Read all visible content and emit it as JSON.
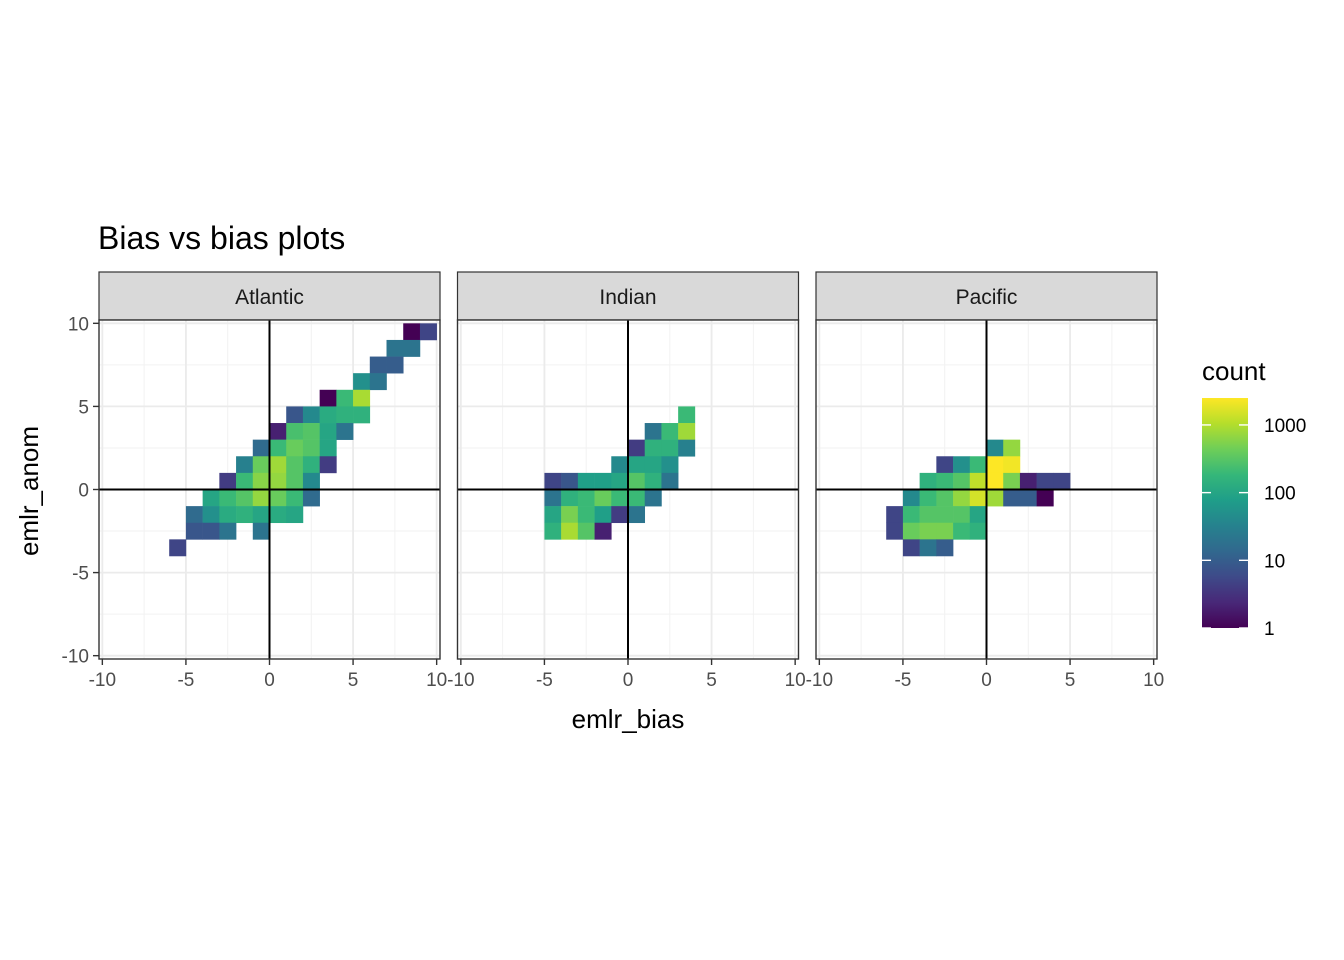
{
  "chart_data": {
    "type": "heatmap",
    "title": "Bias vs bias plots",
    "xlabel": "emlr_bias",
    "ylabel": "emlr_anom",
    "xlim": [
      -10,
      10
    ],
    "ylim": [
      -10,
      10
    ],
    "x_ticks": [
      -10,
      -5,
      0,
      5,
      10
    ],
    "y_ticks": [
      -10,
      -5,
      0,
      5,
      10
    ],
    "x_tick_labels": [
      "-10",
      "-5",
      "0",
      "5",
      "10"
    ],
    "y_tick_labels": [
      "-10",
      "-5",
      "0",
      "5",
      "10"
    ],
    "bin_width": 1,
    "grid": true,
    "reference_lines": {
      "x": 0,
      "y": 0
    },
    "legend": {
      "title": "count",
      "position": "right",
      "scale": "log10",
      "breaks": [
        1,
        10,
        100,
        1000
      ],
      "break_labels": [
        "1",
        "10",
        "100",
        "1000"
      ],
      "max": 2500,
      "colors": [
        "#440154",
        "#482878",
        "#3e4a89",
        "#31688e",
        "#26828e",
        "#1f9e89",
        "#35b779",
        "#6ece58",
        "#b5de2b",
        "#fde725"
      ]
    },
    "facets": [
      {
        "name": "Atlantic",
        "cells": [
          {
            "x": 8.5,
            "y": 9.5,
            "count": 1
          },
          {
            "x": 9.5,
            "y": 9.5,
            "count": 5
          },
          {
            "x": 7.5,
            "y": 8.5,
            "count": 20
          },
          {
            "x": 8.5,
            "y": 8.5,
            "count": 20
          },
          {
            "x": 6.5,
            "y": 7.5,
            "count": 10
          },
          {
            "x": 7.5,
            "y": 7.5,
            "count": 10
          },
          {
            "x": 5.5,
            "y": 6.5,
            "count": 50
          },
          {
            "x": 6.5,
            "y": 6.5,
            "count": 20
          },
          {
            "x": 3.5,
            "y": 5.5,
            "count": 1
          },
          {
            "x": 4.5,
            "y": 5.5,
            "count": 200
          },
          {
            "x": 5.5,
            "y": 5.5,
            "count": 900
          },
          {
            "x": 1.5,
            "y": 4.5,
            "count": 8
          },
          {
            "x": 2.5,
            "y": 4.5,
            "count": 40
          },
          {
            "x": 3.5,
            "y": 4.5,
            "count": 120
          },
          {
            "x": 4.5,
            "y": 4.5,
            "count": 150
          },
          {
            "x": 5.5,
            "y": 4.5,
            "count": 150
          },
          {
            "x": 0.5,
            "y": 3.5,
            "count": 2
          },
          {
            "x": 1.5,
            "y": 3.5,
            "count": 250
          },
          {
            "x": 2.5,
            "y": 3.5,
            "count": 300
          },
          {
            "x": 3.5,
            "y": 3.5,
            "count": 100
          },
          {
            "x": 4.5,
            "y": 3.5,
            "count": 20
          },
          {
            "x": -0.5,
            "y": 2.5,
            "count": 15
          },
          {
            "x": 0.5,
            "y": 2.5,
            "count": 200
          },
          {
            "x": 1.5,
            "y": 2.5,
            "count": 400
          },
          {
            "x": 2.5,
            "y": 2.5,
            "count": 300
          },
          {
            "x": 3.5,
            "y": 2.5,
            "count": 100
          },
          {
            "x": -1.5,
            "y": 1.5,
            "count": 30
          },
          {
            "x": -0.5,
            "y": 1.5,
            "count": 400
          },
          {
            "x": 0.5,
            "y": 1.5,
            "count": 800
          },
          {
            "x": 1.5,
            "y": 1.5,
            "count": 300
          },
          {
            "x": 2.5,
            "y": 1.5,
            "count": 150
          },
          {
            "x": 3.5,
            "y": 1.5,
            "count": 4
          },
          {
            "x": -2.5,
            "y": 0.5,
            "count": 4
          },
          {
            "x": -1.5,
            "y": 0.5,
            "count": 200
          },
          {
            "x": -0.5,
            "y": 0.5,
            "count": 600
          },
          {
            "x": 0.5,
            "y": 0.5,
            "count": 700
          },
          {
            "x": 1.5,
            "y": 0.5,
            "count": 300
          },
          {
            "x": 2.5,
            "y": 0.5,
            "count": 40
          },
          {
            "x": -3.5,
            "y": -0.5,
            "count": 100
          },
          {
            "x": -2.5,
            "y": -0.5,
            "count": 200
          },
          {
            "x": -1.5,
            "y": -0.5,
            "count": 300
          },
          {
            "x": -0.5,
            "y": -0.5,
            "count": 700
          },
          {
            "x": 0.5,
            "y": -0.5,
            "count": 400
          },
          {
            "x": 1.5,
            "y": -0.5,
            "count": 200
          },
          {
            "x": 2.5,
            "y": -0.5,
            "count": 15
          },
          {
            "x": -4.5,
            "y": -1.5,
            "count": 15
          },
          {
            "x": -3.5,
            "y": -1.5,
            "count": 50
          },
          {
            "x": -2.5,
            "y": -1.5,
            "count": 120
          },
          {
            "x": -1.5,
            "y": -1.5,
            "count": 150
          },
          {
            "x": -0.5,
            "y": -1.5,
            "count": 100
          },
          {
            "x": 0.5,
            "y": -1.5,
            "count": 120
          },
          {
            "x": 1.5,
            "y": -1.5,
            "count": 100
          },
          {
            "x": -4.5,
            "y": -2.5,
            "count": 8
          },
          {
            "x": -3.5,
            "y": -2.5,
            "count": 8
          },
          {
            "x": -2.5,
            "y": -2.5,
            "count": 20
          },
          {
            "x": -0.5,
            "y": -2.5,
            "count": 20
          },
          {
            "x": -5.5,
            "y": -3.5,
            "count": 5
          }
        ]
      },
      {
        "name": "Indian",
        "cells": [
          {
            "x": 3.5,
            "y": 4.5,
            "count": 200
          },
          {
            "x": 1.5,
            "y": 3.5,
            "count": 20
          },
          {
            "x": 2.5,
            "y": 3.5,
            "count": 200
          },
          {
            "x": 3.5,
            "y": 3.5,
            "count": 800
          },
          {
            "x": 0.5,
            "y": 2.5,
            "count": 4
          },
          {
            "x": 1.5,
            "y": 2.5,
            "count": 150
          },
          {
            "x": 2.5,
            "y": 2.5,
            "count": 150
          },
          {
            "x": 3.5,
            "y": 2.5,
            "count": 30
          },
          {
            "x": -0.5,
            "y": 1.5,
            "count": 40
          },
          {
            "x": 0.5,
            "y": 1.5,
            "count": 100
          },
          {
            "x": 1.5,
            "y": 1.5,
            "count": 100
          },
          {
            "x": 2.5,
            "y": 1.5,
            "count": 50
          },
          {
            "x": -4.5,
            "y": 0.5,
            "count": 5
          },
          {
            "x": -3.5,
            "y": 0.5,
            "count": 8
          },
          {
            "x": -2.5,
            "y": 0.5,
            "count": 80
          },
          {
            "x": -1.5,
            "y": 0.5,
            "count": 80
          },
          {
            "x": -0.5,
            "y": 0.5,
            "count": 100
          },
          {
            "x": 0.5,
            "y": 0.5,
            "count": 300
          },
          {
            "x": 1.5,
            "y": 0.5,
            "count": 150
          },
          {
            "x": 2.5,
            "y": 0.5,
            "count": 20
          },
          {
            "x": -4.5,
            "y": -0.5,
            "count": 20
          },
          {
            "x": -3.5,
            "y": -0.5,
            "count": 150
          },
          {
            "x": -2.5,
            "y": -0.5,
            "count": 200
          },
          {
            "x": -1.5,
            "y": -0.5,
            "count": 400
          },
          {
            "x": -0.5,
            "y": -0.5,
            "count": 200
          },
          {
            "x": 0.5,
            "y": -0.5,
            "count": 200
          },
          {
            "x": 1.5,
            "y": -0.5,
            "count": 20
          },
          {
            "x": -4.5,
            "y": -1.5,
            "count": 100
          },
          {
            "x": -3.5,
            "y": -1.5,
            "count": 500
          },
          {
            "x": -2.5,
            "y": -1.5,
            "count": 200
          },
          {
            "x": -1.5,
            "y": -1.5,
            "count": 80
          },
          {
            "x": -0.5,
            "y": -1.5,
            "count": 4
          },
          {
            "x": 0.5,
            "y": -1.5,
            "count": 20
          },
          {
            "x": -4.5,
            "y": -2.5,
            "count": 150
          },
          {
            "x": -3.5,
            "y": -2.5,
            "count": 900
          },
          {
            "x": -2.5,
            "y": -2.5,
            "count": 300
          },
          {
            "x": -1.5,
            "y": -2.5,
            "count": 2
          }
        ]
      },
      {
        "name": "Pacific",
        "cells": [
          {
            "x": 0.5,
            "y": 2.5,
            "count": 40
          },
          {
            "x": 1.5,
            "y": 2.5,
            "count": 700
          },
          {
            "x": -2.5,
            "y": 1.5,
            "count": 5
          },
          {
            "x": -1.5,
            "y": 1.5,
            "count": 50
          },
          {
            "x": -0.5,
            "y": 1.5,
            "count": 200
          },
          {
            "x": 0.5,
            "y": 1.5,
            "count": 2500
          },
          {
            "x": 1.5,
            "y": 1.5,
            "count": 2200
          },
          {
            "x": -3.5,
            "y": 0.5,
            "count": 150
          },
          {
            "x": -2.5,
            "y": 0.5,
            "count": 200
          },
          {
            "x": -1.5,
            "y": 0.5,
            "count": 300
          },
          {
            "x": -0.5,
            "y": 0.5,
            "count": 1200
          },
          {
            "x": 0.5,
            "y": 0.5,
            "count": 2500
          },
          {
            "x": 1.5,
            "y": 0.5,
            "count": 500
          },
          {
            "x": 2.5,
            "y": 0.5,
            "count": 2
          },
          {
            "x": 3.5,
            "y": 0.5,
            "count": 5
          },
          {
            "x": 4.5,
            "y": 0.5,
            "count": 5
          },
          {
            "x": -4.5,
            "y": -0.5,
            "count": 40
          },
          {
            "x": -3.5,
            "y": -0.5,
            "count": 200
          },
          {
            "x": -2.5,
            "y": -0.5,
            "count": 300
          },
          {
            "x": -1.5,
            "y": -0.5,
            "count": 700
          },
          {
            "x": -0.5,
            "y": -0.5,
            "count": 1500
          },
          {
            "x": 0.5,
            "y": -0.5,
            "count": 800
          },
          {
            "x": 1.5,
            "y": -0.5,
            "count": 10
          },
          {
            "x": 2.5,
            "y": -0.5,
            "count": 10
          },
          {
            "x": 3.5,
            "y": -0.5,
            "count": 1
          },
          {
            "x": -5.5,
            "y": -1.5,
            "count": 5
          },
          {
            "x": -4.5,
            "y": -1.5,
            "count": 200
          },
          {
            "x": -3.5,
            "y": -1.5,
            "count": 300
          },
          {
            "x": -2.5,
            "y": -1.5,
            "count": 300
          },
          {
            "x": -1.5,
            "y": -1.5,
            "count": 300
          },
          {
            "x": -0.5,
            "y": -1.5,
            "count": 100
          },
          {
            "x": -5.5,
            "y": -2.5,
            "count": 5
          },
          {
            "x": -4.5,
            "y": -2.5,
            "count": 400
          },
          {
            "x": -3.5,
            "y": -2.5,
            "count": 500
          },
          {
            "x": -2.5,
            "y": -2.5,
            "count": 500
          },
          {
            "x": -1.5,
            "y": -2.5,
            "count": 200
          },
          {
            "x": -0.5,
            "y": -2.5,
            "count": 150
          },
          {
            "x": -4.5,
            "y": -3.5,
            "count": 5
          },
          {
            "x": -3.5,
            "y": -3.5,
            "count": 20
          },
          {
            "x": -2.5,
            "y": -3.5,
            "count": 10
          }
        ]
      }
    ]
  }
}
